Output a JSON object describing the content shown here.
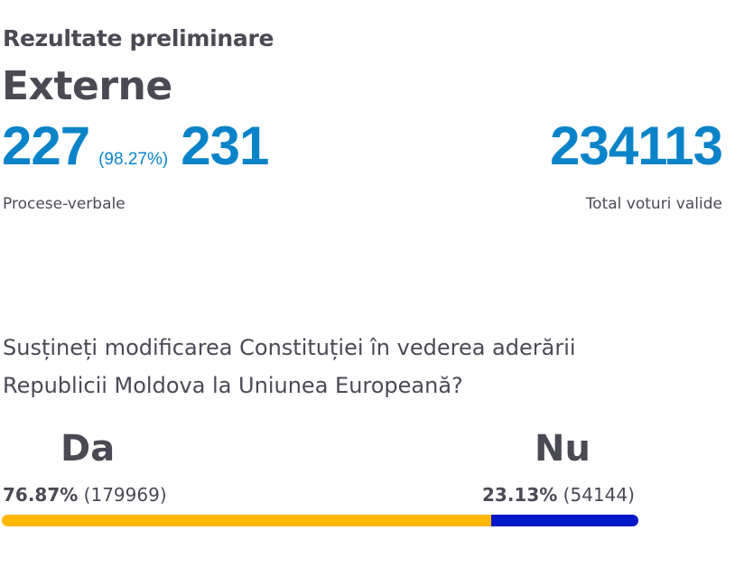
{
  "header": {
    "subtitle": "Rezultate preliminare",
    "title": "Externe"
  },
  "stats": {
    "processed": "227",
    "processed_pct": "(98.27%)",
    "total_reports": "231",
    "reports_label": "Procese-verbale",
    "valid_votes": "234113",
    "valid_votes_label": "Total voturi valide"
  },
  "question": {
    "line1": "Susțineți modificarea Constituției în vederea aderării",
    "line2": "Republicii Moldova la Uniunea Europeană?"
  },
  "results": {
    "yes": {
      "label": "Da",
      "percent": "76.87%",
      "votes": "(179969)",
      "share": 76.87,
      "color": "#ffb800"
    },
    "no": {
      "label": "Nu",
      "percent": "23.13%",
      "votes": "(54144)",
      "share": 23.13,
      "color": "#0018c8"
    }
  }
}
